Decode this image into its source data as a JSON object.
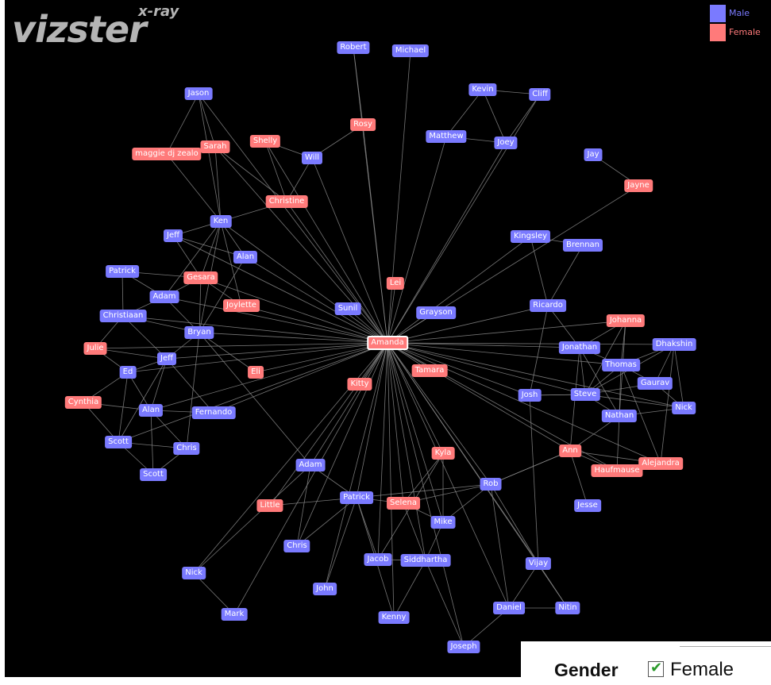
{
  "app": {
    "logo_text": "vizster",
    "logo_sup": "x-ray"
  },
  "legend": [
    {
      "label": "Male",
      "color": "#7a7aff"
    },
    {
      "label": "Female",
      "color": "#ff7a7a"
    }
  ],
  "filter_panel": {
    "title": "Gender",
    "checked": true,
    "option_label": "Female"
  },
  "colors": {
    "male": "#7a7aff",
    "female": "#ff7a7a",
    "edge": "#8a8a8a",
    "background": "#000000"
  },
  "graph": {
    "focus": "amanda",
    "nodes": [
      {
        "id": "amanda",
        "label": "Amanda",
        "g": "f",
        "focus": true
      },
      {
        "id": "robert",
        "label": "Robert",
        "g": "m"
      },
      {
        "id": "michael",
        "label": "Michael",
        "g": "m"
      },
      {
        "id": "kevin",
        "label": "Kevin",
        "g": "m"
      },
      {
        "id": "cliff",
        "label": "Cliff",
        "g": "m"
      },
      {
        "id": "matthew",
        "label": "Matthew",
        "g": "m"
      },
      {
        "id": "joey",
        "label": "Joey",
        "g": "m"
      },
      {
        "id": "jay",
        "label": "Jay",
        "g": "m"
      },
      {
        "id": "jayne",
        "label": "Jayne",
        "g": "f"
      },
      {
        "id": "jason",
        "label": "Jason",
        "g": "m"
      },
      {
        "id": "rosy",
        "label": "Rosy",
        "g": "f"
      },
      {
        "id": "shelly",
        "label": "Shelly",
        "g": "f"
      },
      {
        "id": "sarah",
        "label": "Sarah",
        "g": "f"
      },
      {
        "id": "maggie",
        "label": "maggie dj zealo",
        "g": "f"
      },
      {
        "id": "will",
        "label": "Will",
        "g": "m"
      },
      {
        "id": "christine",
        "label": "Christine",
        "g": "f"
      },
      {
        "id": "ken",
        "label": "Ken",
        "g": "m"
      },
      {
        "id": "jeff1",
        "label": "Jeff",
        "g": "m"
      },
      {
        "id": "alan1",
        "label": "Alan",
        "g": "m"
      },
      {
        "id": "patrick1",
        "label": "Patrick",
        "g": "m"
      },
      {
        "id": "gesara",
        "label": "Gesara",
        "g": "f"
      },
      {
        "id": "adam1",
        "label": "Adam",
        "g": "m"
      },
      {
        "id": "joylette",
        "label": "Joylette",
        "g": "f"
      },
      {
        "id": "christiaan",
        "label": "Christiaan",
        "g": "m"
      },
      {
        "id": "bryan",
        "label": "Bryan",
        "g": "m"
      },
      {
        "id": "julie",
        "label": "Julie",
        "g": "f"
      },
      {
        "id": "jeff2",
        "label": "Jeff",
        "g": "m"
      },
      {
        "id": "ed",
        "label": "Ed",
        "g": "m"
      },
      {
        "id": "eli",
        "label": "Eli",
        "g": "f"
      },
      {
        "id": "cynthia",
        "label": "Cynthia",
        "g": "f"
      },
      {
        "id": "alan2",
        "label": "Alan",
        "g": "m"
      },
      {
        "id": "fernando",
        "label": "Fernando",
        "g": "m"
      },
      {
        "id": "scott1",
        "label": "Scott",
        "g": "m"
      },
      {
        "id": "chris1",
        "label": "Chris",
        "g": "m"
      },
      {
        "id": "scott2",
        "label": "Scott",
        "g": "m"
      },
      {
        "id": "sunil",
        "label": "Sunil",
        "g": "m"
      },
      {
        "id": "lei",
        "label": "Lei",
        "g": "f"
      },
      {
        "id": "grayson",
        "label": "Grayson",
        "g": "m"
      },
      {
        "id": "kingsley",
        "label": "Kingsley",
        "g": "m"
      },
      {
        "id": "brennan",
        "label": "Brennan",
        "g": "m"
      },
      {
        "id": "ricardo",
        "label": "Ricardo",
        "g": "m"
      },
      {
        "id": "johanna",
        "label": "Johanna",
        "g": "f"
      },
      {
        "id": "jonathan",
        "label": "Jonathan",
        "g": "m"
      },
      {
        "id": "dhakshin",
        "label": "Dhakshin",
        "g": "m"
      },
      {
        "id": "thomas",
        "label": "Thomas",
        "g": "m"
      },
      {
        "id": "gaurav",
        "label": "Gaurav",
        "g": "m"
      },
      {
        "id": "tamara",
        "label": "Tamara",
        "g": "f"
      },
      {
        "id": "kitty",
        "label": "Kitty",
        "g": "f"
      },
      {
        "id": "josh",
        "label": "Josh",
        "g": "m"
      },
      {
        "id": "steve",
        "label": "Steve",
        "g": "m"
      },
      {
        "id": "nick1",
        "label": "Nick",
        "g": "m"
      },
      {
        "id": "nathan",
        "label": "Nathan",
        "g": "m"
      },
      {
        "id": "ann",
        "label": "Ann",
        "g": "f"
      },
      {
        "id": "alejandra",
        "label": "Alejandra",
        "g": "f"
      },
      {
        "id": "haufmause",
        "label": "Haufmause",
        "g": "f"
      },
      {
        "id": "kyla",
        "label": "Kyla",
        "g": "f"
      },
      {
        "id": "adam2",
        "label": "Adam",
        "g": "m"
      },
      {
        "id": "rob",
        "label": "Rob",
        "g": "m"
      },
      {
        "id": "jesse",
        "label": "Jesse",
        "g": "m"
      },
      {
        "id": "little",
        "label": "Little",
        "g": "f"
      },
      {
        "id": "patrick2",
        "label": "Patrick",
        "g": "m"
      },
      {
        "id": "selena",
        "label": "Selena",
        "g": "f"
      },
      {
        "id": "mike",
        "label": "Mike",
        "g": "m"
      },
      {
        "id": "chris2",
        "label": "Chris",
        "g": "m"
      },
      {
        "id": "jacob",
        "label": "Jacob",
        "g": "m"
      },
      {
        "id": "siddhartha",
        "label": "Siddhartha",
        "g": "m"
      },
      {
        "id": "vijay",
        "label": "Vijay",
        "g": "m"
      },
      {
        "id": "nick2",
        "label": "Nick",
        "g": "m"
      },
      {
        "id": "john",
        "label": "John",
        "g": "m"
      },
      {
        "id": "daniel",
        "label": "Daniel",
        "g": "m"
      },
      {
        "id": "nitin",
        "label": "Nitin",
        "g": "m"
      },
      {
        "id": "mark",
        "label": "Mark",
        "g": "m"
      },
      {
        "id": "kenny",
        "label": "Kenny",
        "g": "m"
      },
      {
        "id": "joseph",
        "label": "Joseph",
        "g": "m"
      }
    ],
    "edges": [
      [
        "amanda",
        "robert"
      ],
      [
        "amanda",
        "michael"
      ],
      [
        "amanda",
        "rosy"
      ],
      [
        "amanda",
        "matthew"
      ],
      [
        "amanda",
        "joey"
      ],
      [
        "amanda",
        "cliff"
      ],
      [
        "amanda",
        "jayne"
      ],
      [
        "amanda",
        "jason"
      ],
      [
        "amanda",
        "shelly"
      ],
      [
        "amanda",
        "sarah"
      ],
      [
        "amanda",
        "will"
      ],
      [
        "amanda",
        "christine"
      ],
      [
        "amanda",
        "ken"
      ],
      [
        "amanda",
        "jeff1"
      ],
      [
        "amanda",
        "alan1"
      ],
      [
        "amanda",
        "gesara"
      ],
      [
        "amanda",
        "adam1"
      ],
      [
        "amanda",
        "joylette"
      ],
      [
        "amanda",
        "christiaan"
      ],
      [
        "amanda",
        "bryan"
      ],
      [
        "amanda",
        "julie"
      ],
      [
        "amanda",
        "jeff2"
      ],
      [
        "amanda",
        "ed"
      ],
      [
        "amanda",
        "eli"
      ],
      [
        "amanda",
        "alan2"
      ],
      [
        "amanda",
        "fernando"
      ],
      [
        "amanda",
        "sunil"
      ],
      [
        "amanda",
        "lei"
      ],
      [
        "amanda",
        "grayson"
      ],
      [
        "amanda",
        "kingsley"
      ],
      [
        "amanda",
        "ricardo"
      ],
      [
        "amanda",
        "johanna"
      ],
      [
        "amanda",
        "jonathan"
      ],
      [
        "amanda",
        "dhakshin"
      ],
      [
        "amanda",
        "thomas"
      ],
      [
        "amanda",
        "tamara"
      ],
      [
        "amanda",
        "kitty"
      ],
      [
        "amanda",
        "josh"
      ],
      [
        "amanda",
        "steve"
      ],
      [
        "amanda",
        "nick1"
      ],
      [
        "amanda",
        "ann"
      ],
      [
        "amanda",
        "kyla"
      ],
      [
        "amanda",
        "adam2"
      ],
      [
        "amanda",
        "rob"
      ],
      [
        "amanda",
        "little"
      ],
      [
        "amanda",
        "patrick2"
      ],
      [
        "amanda",
        "selena"
      ],
      [
        "amanda",
        "mike"
      ],
      [
        "amanda",
        "chris2"
      ],
      [
        "amanda",
        "jacob"
      ],
      [
        "amanda",
        "siddhartha"
      ],
      [
        "amanda",
        "vijay"
      ],
      [
        "amanda",
        "nick2"
      ],
      [
        "amanda",
        "john"
      ],
      [
        "amanda",
        "daniel"
      ],
      [
        "amanda",
        "nitin"
      ],
      [
        "amanda",
        "mark"
      ],
      [
        "amanda",
        "kenny"
      ],
      [
        "amanda",
        "joseph"
      ],
      [
        "amanda",
        "alejandra"
      ],
      [
        "amanda",
        "haufmause"
      ],
      [
        "amanda",
        "scott1"
      ],
      [
        "robert",
        "rosy"
      ],
      [
        "kevin",
        "cliff"
      ],
      [
        "kevin",
        "matthew"
      ],
      [
        "kevin",
        "joey"
      ],
      [
        "matthew",
        "joey"
      ],
      [
        "joey",
        "cliff"
      ],
      [
        "jay",
        "jayne"
      ],
      [
        "rosy",
        "will"
      ],
      [
        "jason",
        "sarah"
      ],
      [
        "jason",
        "maggie"
      ],
      [
        "jason",
        "ken"
      ],
      [
        "maggie",
        "sarah"
      ],
      [
        "maggie",
        "ken"
      ],
      [
        "sarah",
        "ken"
      ],
      [
        "sarah",
        "christine"
      ],
      [
        "shelly",
        "will"
      ],
      [
        "shelly",
        "christine"
      ],
      [
        "will",
        "christine"
      ],
      [
        "christine",
        "ken"
      ],
      [
        "ken",
        "jeff1"
      ],
      [
        "ken",
        "alan1"
      ],
      [
        "ken",
        "gesara"
      ],
      [
        "ken",
        "bryan"
      ],
      [
        "ken",
        "adam1"
      ],
      [
        "ken",
        "joylette"
      ],
      [
        "jeff1",
        "alan1"
      ],
      [
        "jeff1",
        "gesara"
      ],
      [
        "patrick1",
        "adam1"
      ],
      [
        "patrick1",
        "gesara"
      ],
      [
        "adam1",
        "christiaan"
      ],
      [
        "adam1",
        "gesara"
      ],
      [
        "adam1",
        "bryan"
      ],
      [
        "gesara",
        "joylette"
      ],
      [
        "gesara",
        "bryan"
      ],
      [
        "christiaan",
        "bryan"
      ],
      [
        "christiaan",
        "jeff2"
      ],
      [
        "christiaan",
        "julie"
      ],
      [
        "bryan",
        "jeff2"
      ],
      [
        "bryan",
        "eli"
      ],
      [
        "bryan",
        "adam2"
      ],
      [
        "bryan",
        "chris1"
      ],
      [
        "julie",
        "ed"
      ],
      [
        "julie",
        "jeff2"
      ],
      [
        "jeff2",
        "ed"
      ],
      [
        "jeff2",
        "alan2"
      ],
      [
        "jeff2",
        "fernando"
      ],
      [
        "jeff2",
        "scott1"
      ],
      [
        "ed",
        "cynthia"
      ],
      [
        "ed",
        "scott1"
      ],
      [
        "ed",
        "alan2"
      ],
      [
        "cynthia",
        "alan2"
      ],
      [
        "cynthia",
        "scott1"
      ],
      [
        "alan2",
        "fernando"
      ],
      [
        "alan2",
        "chris1"
      ],
      [
        "alan2",
        "scott2"
      ],
      [
        "scott1",
        "chris1"
      ],
      [
        "scott1",
        "scott2"
      ],
      [
        "chris1",
        "scott2"
      ],
      [
        "patrick1",
        "christiaan"
      ],
      [
        "alan1",
        "bryan"
      ],
      [
        "kingsley",
        "brennan"
      ],
      [
        "kingsley",
        "ricardo"
      ],
      [
        "brennan",
        "ricardo"
      ],
      [
        "ricardo",
        "josh"
      ],
      [
        "ricardo",
        "jonathan"
      ],
      [
        "johanna",
        "jonathan"
      ],
      [
        "johanna",
        "thomas"
      ],
      [
        "johanna",
        "steve"
      ],
      [
        "johanna",
        "nathan"
      ],
      [
        "jonathan",
        "thomas"
      ],
      [
        "jonathan",
        "steve"
      ],
      [
        "jonathan",
        "nathan"
      ],
      [
        "jonathan",
        "ann"
      ],
      [
        "dhakshin",
        "thomas"
      ],
      [
        "dhakshin",
        "gaurav"
      ],
      [
        "dhakshin",
        "steve"
      ],
      [
        "dhakshin",
        "nick1"
      ],
      [
        "thomas",
        "gaurav"
      ],
      [
        "thomas",
        "steve"
      ],
      [
        "thomas",
        "nathan"
      ],
      [
        "gaurav",
        "nick1"
      ],
      [
        "gaurav",
        "steve"
      ],
      [
        "steve",
        "nick1"
      ],
      [
        "steve",
        "nathan"
      ],
      [
        "steve",
        "josh"
      ],
      [
        "nathan",
        "nick1"
      ],
      [
        "nathan",
        "ann"
      ],
      [
        "ann",
        "alejandra"
      ],
      [
        "ann",
        "haufmause"
      ],
      [
        "ann",
        "jesse"
      ],
      [
        "ann",
        "rob"
      ],
      [
        "haufmause",
        "alejandra"
      ],
      [
        "josh",
        "steve"
      ],
      [
        "josh",
        "vijay"
      ],
      [
        "nathan",
        "haufmause"
      ],
      [
        "thomas",
        "alejandra"
      ],
      [
        "dhakshin",
        "alejandra"
      ],
      [
        "kyla",
        "selena"
      ],
      [
        "kyla",
        "mike"
      ],
      [
        "kyla",
        "jacob"
      ],
      [
        "adam2",
        "patrick2"
      ],
      [
        "adam2",
        "chris2"
      ],
      [
        "adam2",
        "nick2"
      ],
      [
        "rob",
        "mike"
      ],
      [
        "rob",
        "patrick2"
      ],
      [
        "rob",
        "selena"
      ],
      [
        "rob",
        "ann"
      ],
      [
        "little",
        "patrick2"
      ],
      [
        "patrick2",
        "selena"
      ],
      [
        "patrick2",
        "chris2"
      ],
      [
        "patrick2",
        "jacob"
      ],
      [
        "patrick2",
        "john"
      ],
      [
        "patrick2",
        "kenny"
      ],
      [
        "selena",
        "mike"
      ],
      [
        "selena",
        "siddhartha"
      ],
      [
        "mike",
        "siddhartha"
      ],
      [
        "jacob",
        "siddhartha"
      ],
      [
        "siddhartha",
        "kenny"
      ],
      [
        "siddhartha",
        "joseph"
      ],
      [
        "vijay",
        "daniel"
      ],
      [
        "vijay",
        "nitin"
      ],
      [
        "daniel",
        "nitin"
      ],
      [
        "daniel",
        "joseph"
      ],
      [
        "nick2",
        "mark"
      ],
      [
        "rob",
        "vijay"
      ],
      [
        "rob",
        "daniel"
      ]
    ]
  }
}
